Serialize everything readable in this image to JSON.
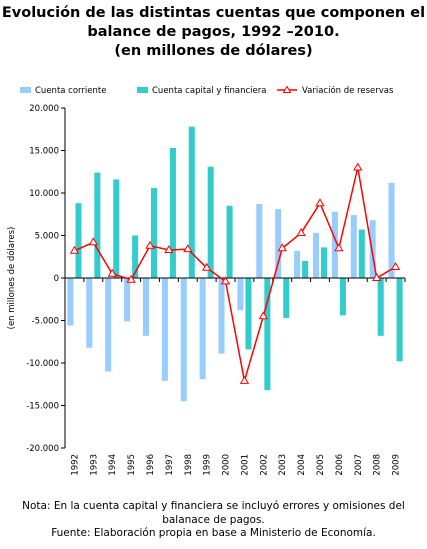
{
  "title_lines": [
    "Evolución de las distintas cuentas que componen el",
    "balance de pagos, 1992 –2010.",
    "(en millones de dólares)"
  ],
  "note_lines": [
    "Nota: En la cuenta capital y financiera se incluyó errores y omisiones del",
    "balanace de pagos.",
    "Fuente: Elaboración propia en base a Ministerio de Economía."
  ],
  "chart_data": {
    "type": "bar",
    "title": "Evolución de las distintas cuentas que componen el balance de pagos, 1992 –2010. (en millones de dólares)",
    "xlabel": "",
    "ylabel": "(en millones de dólares)",
    "ylim": [
      -20000,
      20000
    ],
    "ytick_step": 5000,
    "ytick_labels": [
      "-20.000",
      "-15.000",
      "-10.000",
      "-5.000",
      "0",
      "5.000",
      "10.000",
      "15.000",
      "20.000"
    ],
    "grid": false,
    "legend_position": "top",
    "categories": [
      "1992",
      "1993",
      "1994",
      "1995",
      "1996",
      "1997",
      "1998",
      "1999",
      "2000",
      "2001",
      "2002",
      "2003",
      "2004",
      "2005",
      "2006",
      "2007",
      "2008",
      "2009"
    ],
    "series": [
      {
        "name": "Cuenta corriente",
        "kind": "bar",
        "color": "#99ccff",
        "values": [
          -5600,
          -8200,
          -11000,
          -5100,
          -6800,
          -12100,
          -14500,
          -11900,
          -8900,
          -3800,
          8700,
          8100,
          3200,
          5300,
          7800,
          7400,
          6800,
          11200
        ]
      },
      {
        "name": "Cuenta capital y financiera",
        "kind": "bar",
        "color": "#33cccc",
        "values": [
          8800,
          12400,
          11600,
          5000,
          10600,
          15300,
          17800,
          13100,
          8500,
          -8400,
          -13200,
          -4700,
          2000,
          3600,
          -4400,
          5700,
          -6800,
          -9800
        ]
      },
      {
        "name": "Variación de reservas",
        "kind": "line",
        "color": "#ff0000",
        "marker": "triangle",
        "values": [
          3200,
          4200,
          500,
          -200,
          3800,
          3300,
          3400,
          1200,
          -400,
          -12100,
          -4500,
          3500,
          5300,
          8800,
          3500,
          13000,
          0,
          1300
        ]
      }
    ]
  }
}
